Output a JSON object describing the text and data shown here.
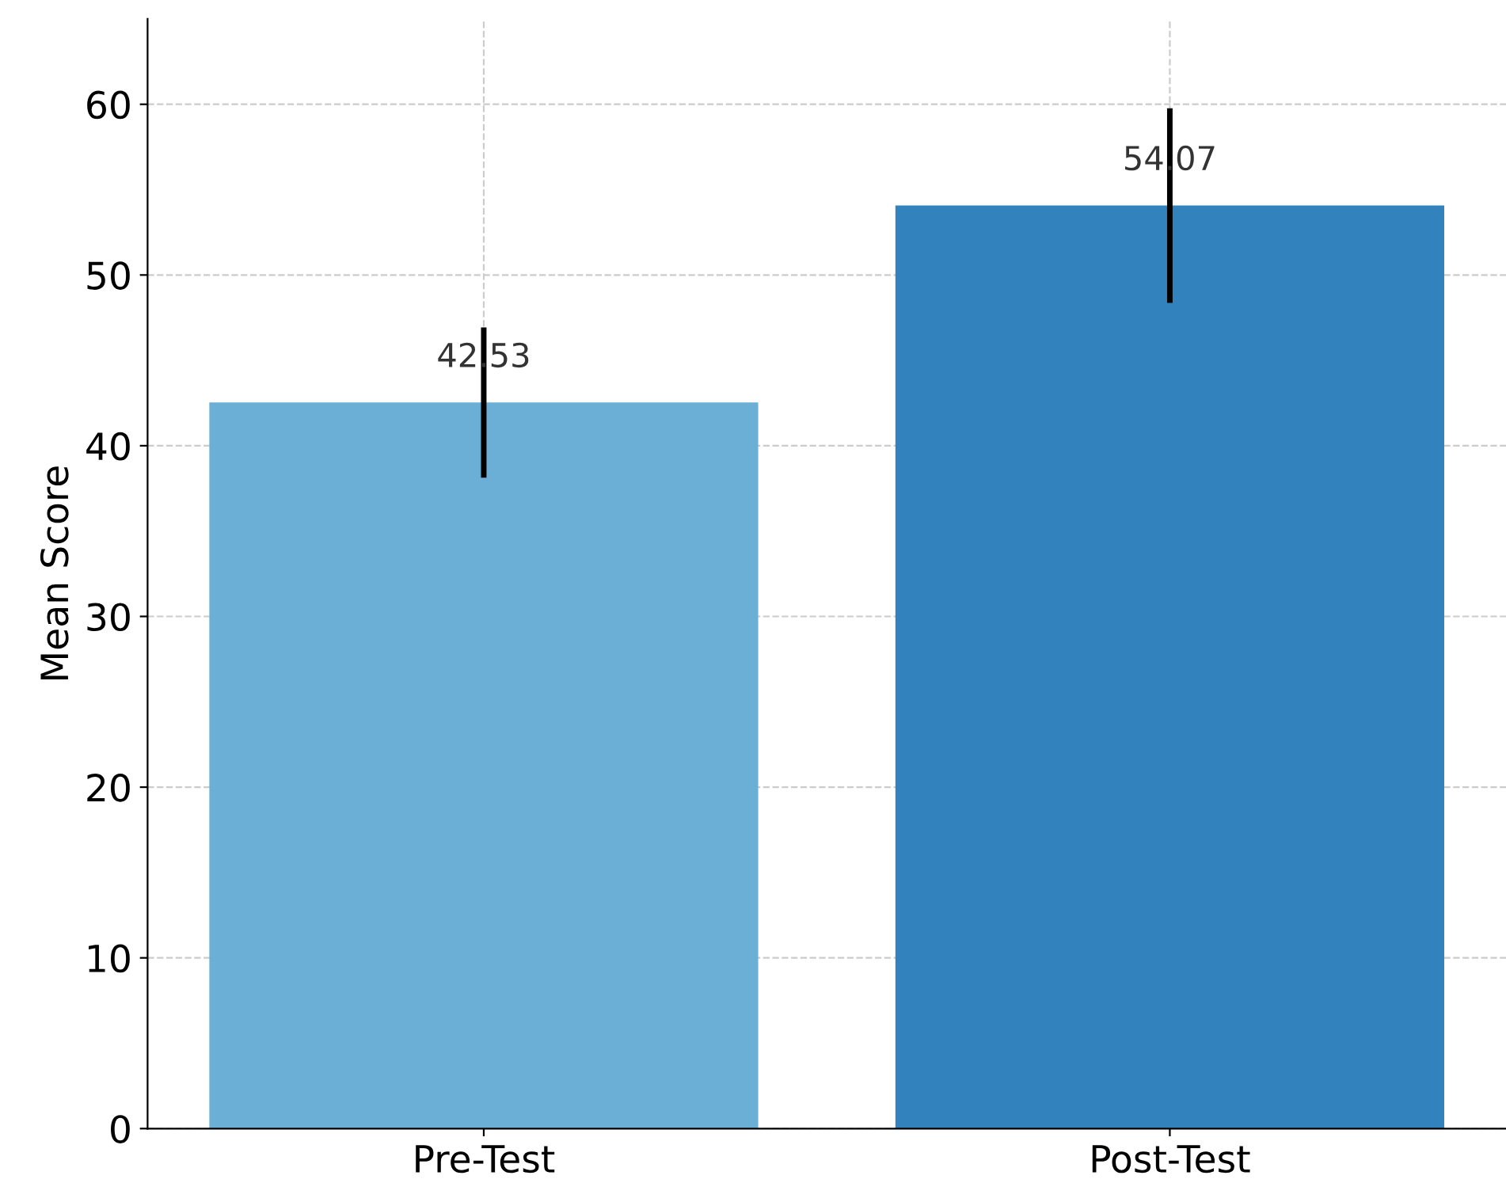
{
  "chart_data": {
    "type": "bar",
    "ylabel": "Mean Score",
    "categories": [
      "Pre-Test",
      "Post-Test"
    ],
    "values": [
      42.53,
      54.07
    ],
    "colors": [
      "#6baed6",
      "#3182bd"
    ],
    "errors": [
      4.4,
      5.7
    ],
    "value_labels": [
      "42.53",
      "54.07"
    ],
    "ylim": [
      0,
      65
    ],
    "yticks": [
      0,
      10,
      20,
      30,
      40,
      50,
      60
    ],
    "grid": true,
    "line_style": "dashed"
  }
}
